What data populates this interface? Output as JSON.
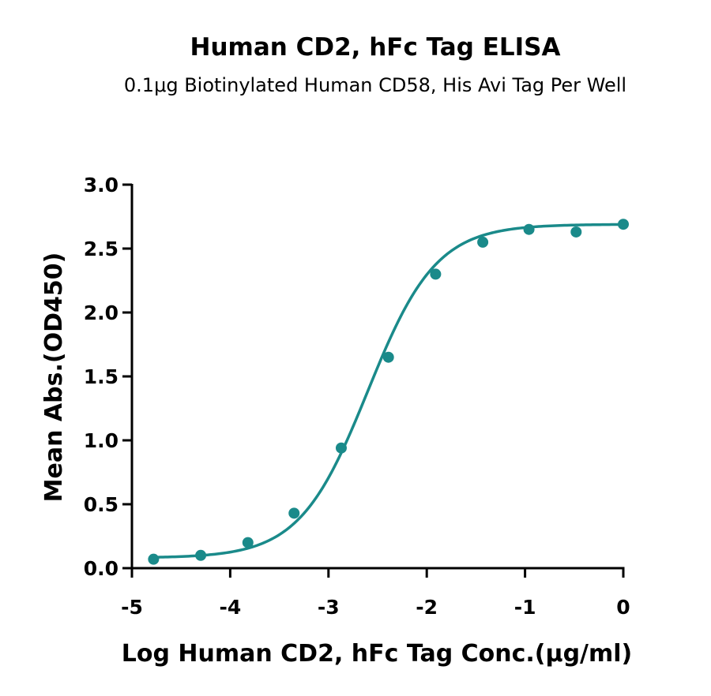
{
  "chart_data": {
    "type": "scatter",
    "title": "Human CD2, hFc Tag ELISA",
    "subtitle": "0.1μg Biotinylated Human CD58, His Avi Tag Per Well",
    "xlabel": "Log Human CD2, hFc Tag Conc.(μg/ml)",
    "ylabel": "Mean Abs.(OD450)",
    "xlim": [
      -5,
      0
    ],
    "ylim": [
      0,
      3
    ],
    "x_ticks": [
      -5,
      -4,
      -3,
      -2,
      -1,
      0
    ],
    "x_tick_labels": [
      "-5",
      "-4",
      "-3",
      "-2",
      "-1",
      "0"
    ],
    "y_ticks": [
      0,
      0.5,
      1,
      1.5,
      2,
      2.5,
      3
    ],
    "y_tick_labels": [
      "0.0",
      "0.5",
      "1.0",
      "1.5",
      "2.0",
      "2.5",
      "3.0"
    ],
    "grid": false,
    "legend": "none",
    "series": [
      {
        "x": [
          -4.78,
          -4.3,
          -3.82,
          -3.35,
          -2.87,
          -2.39,
          -1.91,
          -1.43,
          -0.96,
          -0.48,
          0
        ],
        "y": [
          0.07,
          0.1,
          0.2,
          0.43,
          0.94,
          1.65,
          2.3,
          2.55,
          2.65,
          2.63,
          2.69
        ],
        "color": "#1a8a8a"
      }
    ],
    "fit_curve": {
      "model": "4PL",
      "bottom": 0.08,
      "top": 2.69,
      "logEC50": -2.6,
      "hill": 1.25,
      "color": "#1a8a8a"
    }
  }
}
